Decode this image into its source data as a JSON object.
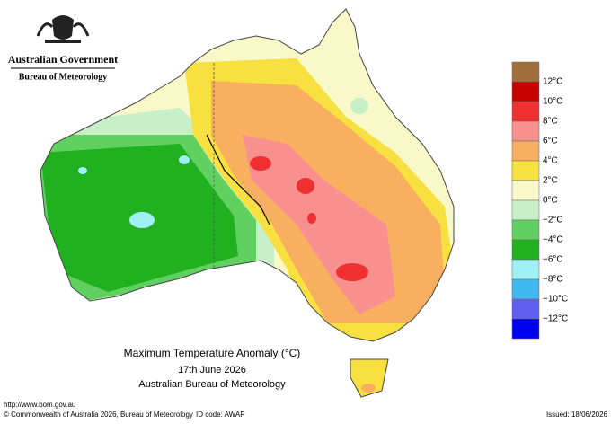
{
  "header": {
    "government": "Australian Government",
    "bureau": "Bureau of Meteorology"
  },
  "legend": {
    "labels": [
      "12°C",
      "10°C",
      "8°C",
      "6°C",
      "4°C",
      "2°C",
      "0°C",
      "−2°C",
      "−4°C",
      "−6°C",
      "−8°C",
      "−10°C",
      "−12°C"
    ],
    "colors": [
      "#a0703c",
      "#c80000",
      "#f03030",
      "#f89090",
      "#f8b060",
      "#f8e040",
      "#f8f8c8",
      "#c8f0c8",
      "#60d060",
      "#20b020",
      "#a0f0f8",
      "#40b8f0",
      "#6060f0",
      "#0000f0"
    ]
  },
  "title": {
    "line1": "Maximum Temperature Anomaly (°C)",
    "line2": "17th June 2026",
    "line3": "Australian Bureau of Meteorology"
  },
  "footer": {
    "url": "http://www.bom.gov.au",
    "copyright": "© Commonwealth of Australia 2026, Bureau of Meteorology",
    "id_code": "ID code: AWAP",
    "issued": "Issued: 18/06/2026"
  }
}
